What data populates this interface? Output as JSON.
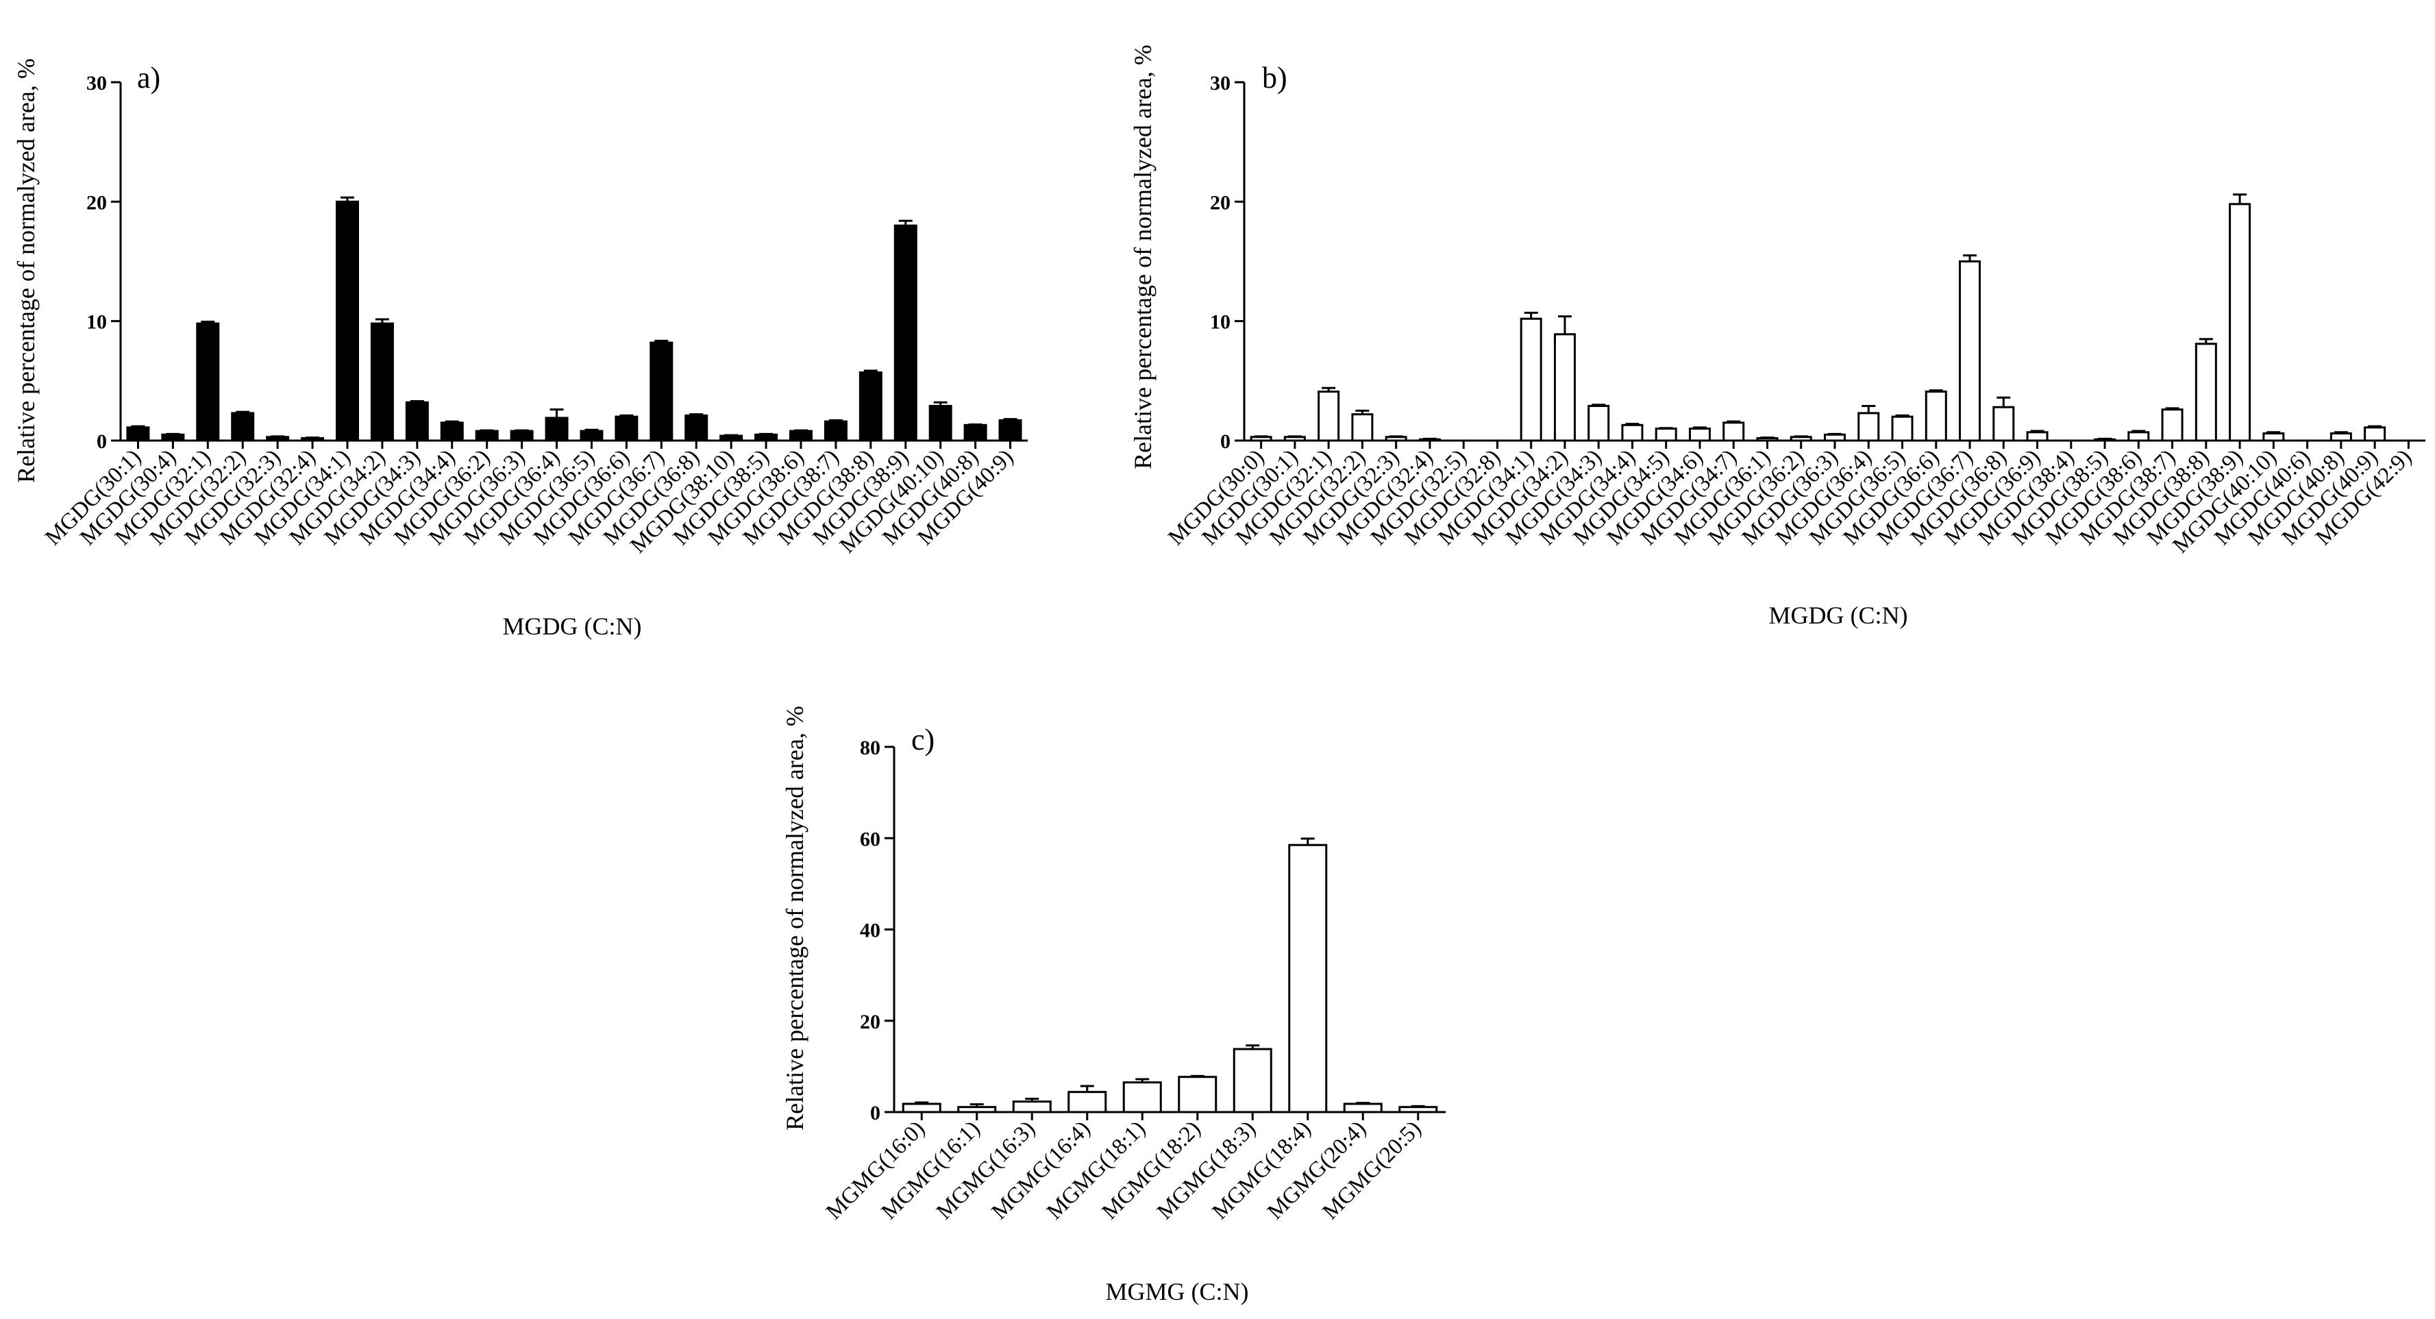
{
  "chart_data": [
    {
      "id": "a",
      "type": "bar",
      "panel_label": "a)",
      "bar_fill": "#000000",
      "xlabel": "MGDG (C:N)",
      "ylabel": "Relative percentage of normalyzed area, %",
      "ylim": [
        0,
        30
      ],
      "yticks": [
        0,
        10,
        20,
        30
      ],
      "categories": [
        "MGDG(30:1)",
        "MGDG(30:4)",
        "MGDG(32:1)",
        "MGDG(32:2)",
        "MGDG(32:3)",
        "MGDG(32:4)",
        "MGDG(34:1)",
        "MGDG(34:2)",
        "MGDG(34:3)",
        "MGDG(34:4)",
        "MGDG(36:2)",
        "MGDG(36:3)",
        "MGDG(36:4)",
        "MGDG(36:5)",
        "MGDG(36:6)",
        "MGDG(36:7)",
        "MGDG(36:8)",
        "MGDG(38:10)",
        "MGDG(38:5)",
        "MGDG(38:6)",
        "MGDG(38:7)",
        "MGDG(38:8)",
        "MGDG(38:9)",
        "MGDG(40:10)",
        "MGDG(40:8)",
        "MGDG(40:9)"
      ],
      "values": [
        1.1,
        0.5,
        9.8,
        2.3,
        0.3,
        0.2,
        20.0,
        9.8,
        3.2,
        1.5,
        0.8,
        0.8,
        1.9,
        0.8,
        2.0,
        8.2,
        2.1,
        0.4,
        0.5,
        0.8,
        1.6,
        5.7,
        18.0,
        2.9,
        1.3,
        1.7
      ],
      "errors": [
        0.1,
        0.05,
        0.15,
        0.1,
        0.05,
        0.05,
        0.35,
        0.35,
        0.1,
        0.1,
        0.05,
        0.05,
        0.7,
        0.1,
        0.1,
        0.15,
        0.1,
        0.05,
        0.05,
        0.05,
        0.1,
        0.15,
        0.4,
        0.3,
        0.05,
        0.1
      ]
    },
    {
      "id": "b",
      "type": "bar",
      "panel_label": "b)",
      "bar_fill": "#ffffff",
      "xlabel": "MGDG (C:N)",
      "ylabel": "Relative percentage of normalyzed area, %",
      "ylim": [
        0,
        30
      ],
      "yticks": [
        0,
        10,
        20,
        30
      ],
      "categories": [
        "MGDG(30:0)",
        "MGDG(30:1)",
        "MGDG(32:1)",
        "MGDG(32:2)",
        "MGDG(32:3)",
        "MGDG(32:4)",
        "MGDG(32:5)",
        "MGDG(32:8)",
        "MGDG(34:1)",
        "MGDG(34:2)",
        "MGDG(34:3)",
        "MGDG(34:4)",
        "MGDG(34:5)",
        "MGDG(34:6)",
        "MGDG(34:7)",
        "MGDG(36:1)",
        "MGDG(36:2)",
        "MGDG(36:3)",
        "MGDG(36:4)",
        "MGDG(36:5)",
        "MGDG(36:6)",
        "MGDG(36:7)",
        "MGDG(36:8)",
        "MGDG(36:9)",
        "MGDG(38:4)",
        "MGDG(38:5)",
        "MGDG(38:6)",
        "MGDG(38:7)",
        "MGDG(38:8)",
        "MGDG(38:9)",
        "MGDG(40:10)",
        "MGDG(40:6)",
        "MGDG(40:8)",
        "MGDG(40:9)",
        "MGDG(42:9)"
      ],
      "values": [
        0.3,
        0.3,
        4.1,
        2.2,
        0.3,
        0.1,
        0.0,
        0.0,
        10.2,
        8.9,
        2.9,
        1.3,
        1.0,
        1.0,
        1.5,
        0.2,
        0.3,
        0.5,
        2.3,
        2.0,
        4.1,
        15.0,
        2.8,
        0.7,
        0.0,
        0.1,
        0.7,
        2.6,
        8.1,
        19.8,
        0.6,
        0.0,
        0.6,
        1.1,
        0.0
      ],
      "errors": [
        0.05,
        0.05,
        0.3,
        0.3,
        0.05,
        0.05,
        0.0,
        0.0,
        0.5,
        1.5,
        0.1,
        0.1,
        0.05,
        0.1,
        0.1,
        0.05,
        0.05,
        0.05,
        0.6,
        0.1,
        0.1,
        0.5,
        0.8,
        0.1,
        0.0,
        0.05,
        0.1,
        0.1,
        0.4,
        0.8,
        0.1,
        0.0,
        0.1,
        0.1,
        0.0
      ]
    },
    {
      "id": "c",
      "type": "bar",
      "panel_label": "c)",
      "bar_fill": "#ffffff",
      "xlabel": "MGMG (C:N)",
      "ylabel": "Relative percentage of normalyzed area, %",
      "ylim": [
        0,
        80
      ],
      "yticks": [
        0,
        20,
        40,
        60,
        80
      ],
      "categories": [
        "MGMG(16:0)",
        "MGMG(16:1)",
        "MGMG(16:3)",
        "MGMG(16:4)",
        "MGMG(18:1)",
        "MGMG(18:2)",
        "MGMG(18:3)",
        "MGMG(18:4)",
        "MGMG(20:4)",
        "MGMG(20:5)"
      ],
      "values": [
        1.8,
        1.1,
        2.3,
        4.4,
        6.5,
        7.7,
        13.8,
        58.5,
        1.8,
        1.1
      ],
      "errors": [
        0.3,
        0.6,
        0.6,
        1.3,
        0.7,
        0.2,
        0.8,
        1.4,
        0.2,
        0.2
      ]
    }
  ]
}
